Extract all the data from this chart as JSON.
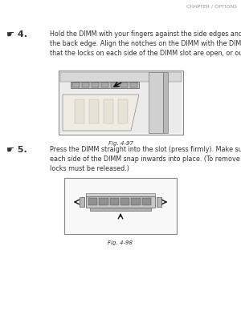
{
  "background_color": "#ffffff",
  "header_text": "CHAPTER / OPTIONS",
  "header_fontsize": 4.5,
  "header_color": "#999999",
  "step4_marker": "☛ 4.",
  "step4_text": "Hold the DIMM with your fingers against the side edges and thumb against\nthe back edge. Align the notches on the DIMM with the DIMM slot. (Check\nthat the locks on each side of the DIMM slot are open, or outward.).",
  "step4_fontsize": 5.8,
  "fig97_label": "Fig. 4-97",
  "fig97_fontsize": 5.0,
  "step5_marker": "☛ 5.",
  "step5_text": "Press the DIMM straight into the slot (press firmly). Make sure the locks on\neach side of the DIMM snap inwards into place. (To remove a DIMM, the\nlocks must be released.)",
  "step5_fontsize": 5.8,
  "fig98_label": "Fig. 4-98",
  "fig98_fontsize": 5.0,
  "text_color": "#333333",
  "marker_fontsize": 8.0,
  "box_edge_color": "#888888",
  "box_face_color": "#ffffff"
}
